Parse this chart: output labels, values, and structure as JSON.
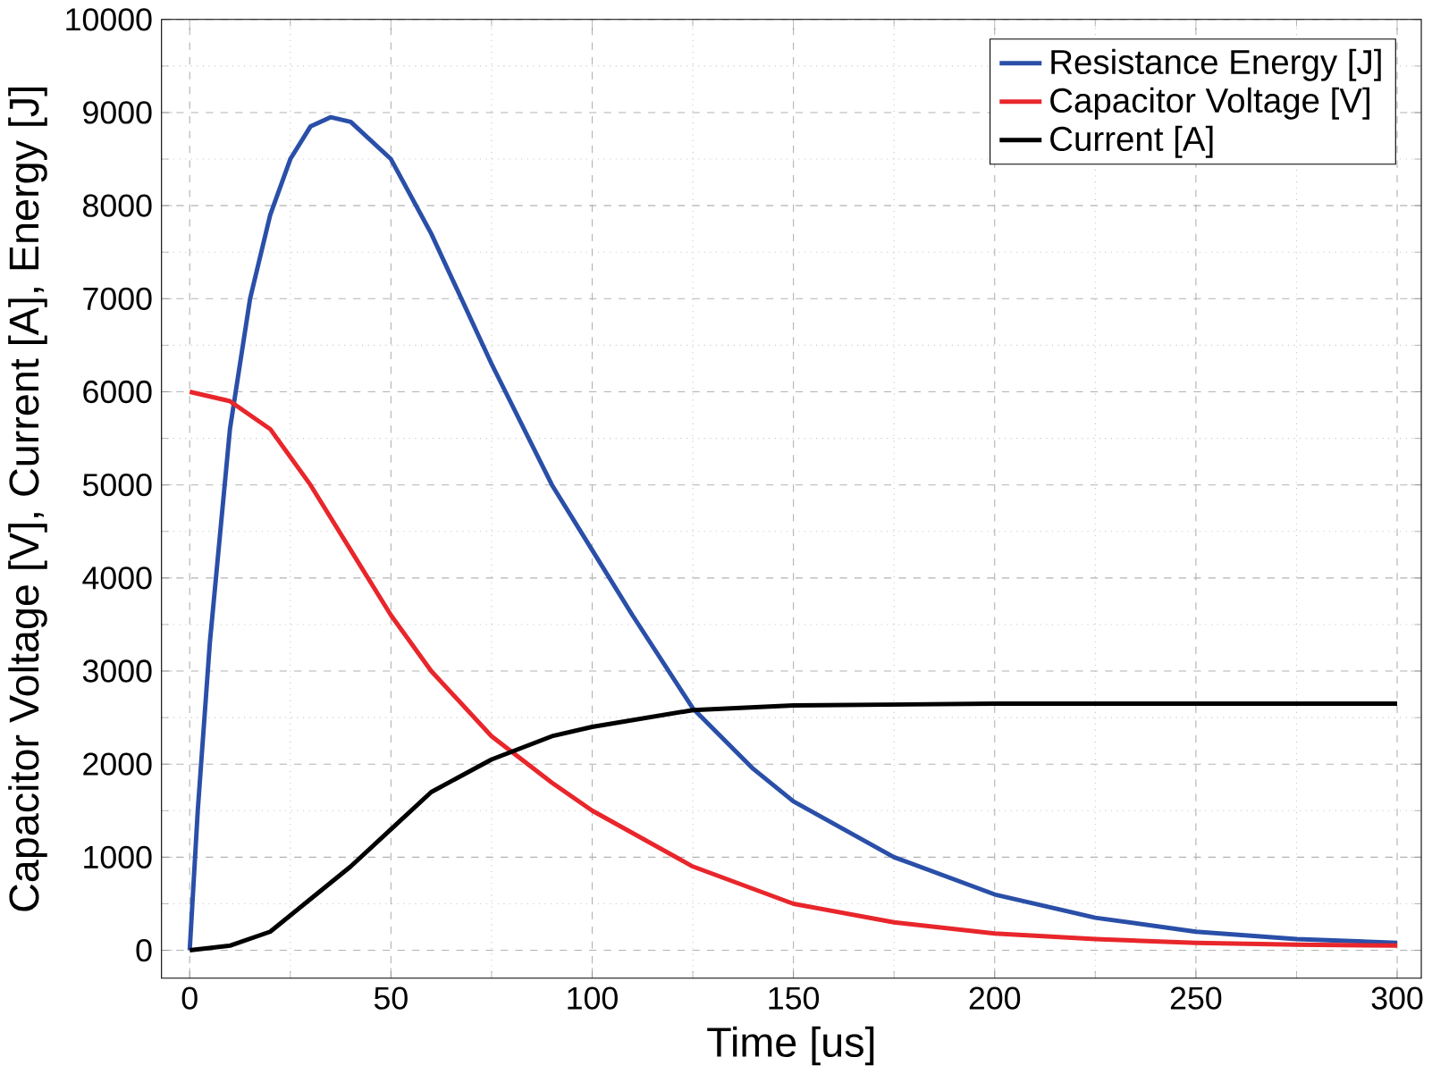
{
  "chart_data": {
    "type": "line",
    "xlabel": "Time [us]",
    "ylabel": "Capacitor Voltage [V], Current [A], Energy [J]",
    "xlim": [
      -7,
      306
    ],
    "ylim": [
      -300,
      10000
    ],
    "xticks": [
      0,
      50,
      100,
      150,
      200,
      250,
      300
    ],
    "yticks": [
      0,
      1000,
      2000,
      3000,
      4000,
      5000,
      6000,
      7000,
      8000,
      9000,
      10000
    ],
    "grid": true,
    "legend": "top right",
    "marker": "none",
    "line_style": "solid",
    "series": [
      {
        "name": "Resistance Energy [J]",
        "color": "#2a4fa8",
        "x": [
          0,
          2,
          5,
          10,
          15,
          20,
          25,
          30,
          35,
          40,
          50,
          60,
          75,
          90,
          100,
          110,
          125,
          140,
          150,
          175,
          200,
          225,
          250,
          275,
          300
        ],
        "values": [
          0,
          1500,
          3300,
          5600,
          7000,
          7900,
          8500,
          8850,
          8950,
          8900,
          8500,
          7700,
          6300,
          5000,
          4300,
          3600,
          2600,
          1950,
          1600,
          1000,
          600,
          350,
          200,
          120,
          80
        ]
      },
      {
        "name": "Capacitor Voltage [V]",
        "color": "#e8262b",
        "x": [
          0,
          10,
          20,
          30,
          40,
          50,
          60,
          75,
          90,
          100,
          125,
          150,
          175,
          200,
          225,
          250,
          275,
          300
        ],
        "values": [
          6000,
          5900,
          5600,
          5000,
          4300,
          3600,
          3000,
          2300,
          1800,
          1500,
          900,
          500,
          300,
          180,
          120,
          80,
          60,
          50
        ]
      },
      {
        "name": "Current [A]",
        "color": "#000000",
        "x": [
          0,
          10,
          20,
          30,
          40,
          50,
          60,
          75,
          90,
          100,
          125,
          150,
          200,
          250,
          300
        ],
        "values": [
          0,
          50,
          200,
          550,
          900,
          1300,
          1700,
          2050,
          2300,
          2400,
          2580,
          2630,
          2650,
          2650,
          2650
        ]
      }
    ]
  }
}
